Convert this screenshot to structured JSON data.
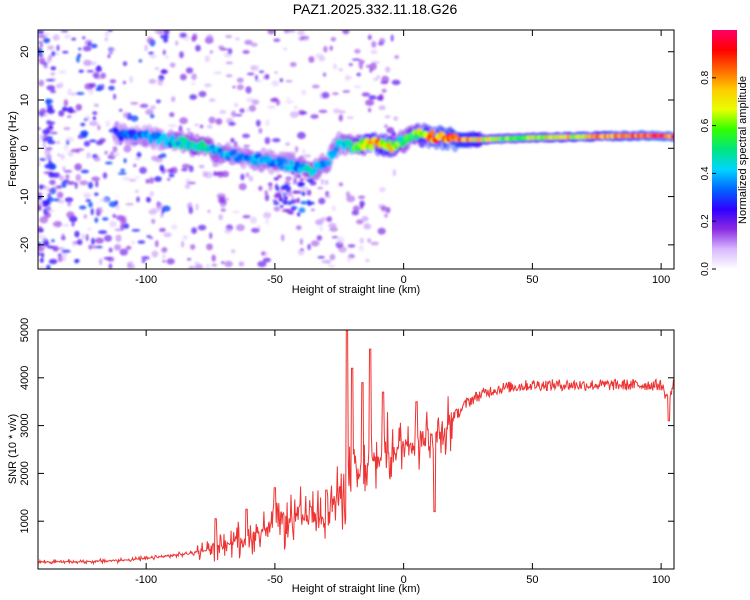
{
  "figure_title": "PAZ1.2025.332.11.18.G26",
  "chart_data": [
    {
      "type": "heatmap",
      "title": "PAZ1.2025.332.11.18.G26",
      "xlabel": "Height of straight line (km)",
      "ylabel": "Frequency (Hz)",
      "xlim": [
        -142,
        105
      ],
      "ylim": [
        -25,
        24.5
      ],
      "xticks": [
        -100,
        -50,
        0,
        50,
        100
      ],
      "xtick_labels": [
        "-100",
        "-50",
        "0",
        "50",
        "100"
      ],
      "yticks": [
        -20,
        -10,
        0,
        10,
        20
      ],
      "ytick_labels": [
        "-20",
        "-10",
        "0",
        "10",
        "20"
      ],
      "ridge": {
        "description": "frequency of maximum spectral amplitude vs height",
        "x": [
          -112,
          -100,
          -90,
          -80,
          -70,
          -62,
          -55,
          -48,
          -40,
          -35,
          -30,
          -25,
          -20,
          -15,
          -10,
          -5,
          0,
          5,
          10,
          20,
          30,
          40,
          50,
          60,
          70,
          80,
          90,
          100,
          105
        ],
        "y": [
          3,
          2.5,
          1.5,
          0.5,
          -1,
          -2,
          -2.5,
          -3,
          -4,
          -4.5,
          -3,
          1,
          0.5,
          1,
          1,
          0.5,
          1.5,
          3,
          2.5,
          1.8,
          1.8,
          2,
          2.2,
          2.3,
          2.4,
          2.5,
          2.6,
          2.6,
          2.4
        ],
        "amplitude": [
          0.3,
          0.35,
          0.4,
          0.5,
          0.4,
          0.35,
          0.4,
          0.35,
          0.4,
          0.45,
          0.4,
          0.4,
          0.5,
          0.65,
          0.75,
          0.7,
          0.5,
          0.6,
          0.8,
          0.85,
          0.7,
          0.6,
          0.65,
          0.7,
          0.75,
          0.8,
          0.85,
          0.95,
          0.9
        ]
      },
      "colorbar": {
        "label": "Normalized spectral amplitude",
        "range": [
          0,
          1
        ],
        "ticks": [
          0.0,
          0.2,
          0.4,
          0.6,
          0.8
        ],
        "tick_labels": [
          "0.0",
          "0.2",
          "0.4",
          "0.6",
          "0.8"
        ],
        "colormap": [
          "#ffffff",
          "#d8b8ff",
          "#8a2be2",
          "#2f00ff",
          "#0066ff",
          "#00d5ff",
          "#00e680",
          "#33ff00",
          "#e6ff00",
          "#ffcc00",
          "#ff6600",
          "#ff0000",
          "#ff0066"
        ]
      }
    },
    {
      "type": "line",
      "xlabel": "Height of straight line (km)",
      "ylabel": "SNR (10 * v/v)",
      "xlim": [
        -142,
        105
      ],
      "ylim": [
        0,
        5000
      ],
      "xticks": [
        -100,
        -50,
        0,
        50,
        100
      ],
      "xtick_labels": [
        "-100",
        "-50",
        "0",
        "50",
        "100"
      ],
      "yticks": [
        1000,
        2000,
        3000,
        4000,
        5000
      ],
      "ytick_labels": [
        "1000",
        "2000",
        "3000",
        "4000",
        "5000"
      ],
      "series": [
        {
          "name": "SNR",
          "color": "#ee3333",
          "x": [
            -142,
            -130,
            -120,
            -110,
            -100,
            -90,
            -80,
            -75,
            -70,
            -65,
            -60,
            -55,
            -50,
            -45,
            -40,
            -35,
            -30,
            -25,
            -22,
            -20,
            -18,
            -15,
            -12,
            -10,
            -5,
            0,
            5,
            10,
            15,
            20,
            25,
            30,
            35,
            40,
            50,
            60,
            70,
            80,
            90,
            100,
            103,
            105
          ],
          "y": [
            150,
            150,
            160,
            180,
            220,
            280,
            350,
            420,
            500,
            600,
            700,
            800,
            900,
            1000,
            1050,
            1100,
            1200,
            1500,
            1700,
            2000,
            1900,
            2100,
            2200,
            2300,
            2450,
            2600,
            2700,
            2800,
            2900,
            3200,
            3500,
            3650,
            3750,
            3800,
            3850,
            3850,
            3850,
            3850,
            3850,
            3850,
            3500,
            3900
          ],
          "spikes": [
            {
              "x": -73,
              "y": 1050
            },
            {
              "x": -61,
              "y": 1250
            },
            {
              "x": -50,
              "y": 1700
            },
            {
              "x": -36,
              "y": 1300
            },
            {
              "x": -30,
              "y": 1650
            },
            {
              "x": -22,
              "y": 5000
            },
            {
              "x": -20,
              "y": 4200
            },
            {
              "x": -16,
              "y": 3900
            },
            {
              "x": -13,
              "y": 4600
            },
            {
              "x": -8,
              "y": 3700
            },
            {
              "x": 5,
              "y": 3500
            },
            {
              "x": 12,
              "y": 1200
            },
            {
              "x": 103,
              "y": 3100
            }
          ]
        }
      ]
    }
  ]
}
